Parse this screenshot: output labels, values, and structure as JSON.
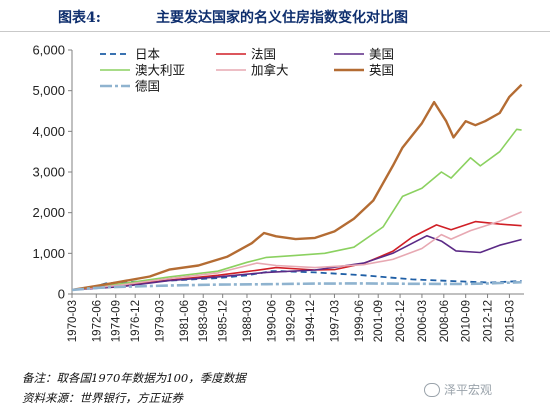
{
  "header": {
    "figure_label": "图表4:",
    "title": "主要发达国家的名义住房指数变化对比图"
  },
  "notes": {
    "line1": "备注：取各国1970年数据为100，季度数据",
    "line2": "资料来源：世界银行，方正证券"
  },
  "watermark": {
    "text": "泽平宏观"
  },
  "chart_data": {
    "type": "line",
    "title": "主要发达国家的名义住房指数变化对比图",
    "xlabel": "",
    "ylabel": "",
    "x_range": [
      1970.0,
      2016.5
    ],
    "ylim": [
      0,
      6000
    ],
    "yticks": [
      0,
      1000,
      2000,
      3000,
      4000,
      5000,
      6000
    ],
    "ytick_labels": [
      "0",
      "1,000",
      "2,000",
      "3,000",
      "4,000",
      "5,000",
      "6,000"
    ],
    "xticks": [
      1970.0,
      1972.5,
      1974.5,
      1976.5,
      1979.0,
      1981.5,
      1983.5,
      1985.5,
      1988.0,
      1990.5,
      1992.5,
      1994.5,
      1997.0,
      1999.5,
      2001.5,
      2003.75,
      2006.0,
      2008.25,
      2010.5,
      2012.75,
      2015.0
    ],
    "xtick_labels": [
      "1970-03",
      "1972-06",
      "1974-09",
      "1976-12",
      "1979-03",
      "1981-06",
      "1983-09",
      "1985-12",
      "1988-03",
      "1990-06",
      "1992-09",
      "1994-12",
      "1997-03",
      "1999-06",
      "2001-09",
      "2003-12",
      "2006-03",
      "2008-06",
      "2010-09",
      "2012-12",
      "2015-03"
    ],
    "grid": false,
    "legend_position": "top-left",
    "series": [
      {
        "name": "日本",
        "color": "#1f5fa6",
        "dash": "6,4",
        "width": 1.8,
        "x": [
          1970,
          1972,
          1973.5,
          1975,
          1980,
          1985,
          1988,
          1990.5,
          1991.5,
          1995,
          2000,
          2005,
          2010,
          2013,
          2016.25
        ],
        "y": [
          100,
          160,
          260,
          290,
          330,
          390,
          460,
          560,
          560,
          530,
          460,
          360,
          310,
          280,
          320
        ]
      },
      {
        "name": "法国",
        "color": "#d01f26",
        "width": 1.6,
        "x": [
          1970,
          1975,
          1980,
          1985,
          1988,
          1991,
          1995,
          1997,
          2000,
          2003,
          2005,
          2007.5,
          2009,
          2011.5,
          2014,
          2016.25
        ],
        "y": [
          100,
          200,
          340,
          460,
          550,
          650,
          590,
          600,
          750,
          1050,
          1400,
          1700,
          1580,
          1780,
          1720,
          1680
        ]
      },
      {
        "name": "美国",
        "color": "#5b2a86",
        "width": 1.6,
        "x": [
          1970,
          1975,
          1980,
          1985,
          1990,
          1995,
          2000,
          2003,
          2006.5,
          2008,
          2009.5,
          2012,
          2014,
          2016.25
        ],
        "y": [
          100,
          180,
          330,
          420,
          530,
          590,
          760,
          1000,
          1430,
          1300,
          1060,
          1020,
          1200,
          1340
        ]
      },
      {
        "name": "澳大利亚",
        "color": "#8bd160",
        "width": 1.6,
        "x": [
          1970,
          1975,
          1980,
          1985,
          1988,
          1990,
          1993,
          1996,
          1999,
          2002,
          2004,
          2006,
          2008,
          2009,
          2011,
          2012,
          2014,
          2015.75,
          2016.25
        ],
        "y": [
          100,
          250,
          420,
          560,
          780,
          900,
          950,
          1000,
          1150,
          1650,
          2400,
          2600,
          3000,
          2850,
          3350,
          3150,
          3500,
          4050,
          4030
        ]
      },
      {
        "name": "加拿大",
        "color": "#e7a8b2",
        "width": 1.6,
        "x": [
          1970,
          1975,
          1980,
          1985,
          1989,
          1991,
          1995,
          2000,
          2003,
          2006,
          2008,
          2009,
          2011,
          2014,
          2016.25
        ],
        "y": [
          100,
          220,
          380,
          520,
          760,
          700,
          650,
          720,
          850,
          1120,
          1460,
          1350,
          1560,
          1790,
          2020
        ]
      },
      {
        "name": "英国",
        "color": "#b46c33",
        "width": 2.4,
        "x": [
          1970,
          1972.5,
          1974,
          1978,
          1980,
          1983,
          1986,
          1988.5,
          1989.75,
          1991,
          1993,
          1995,
          1997,
          1999,
          2001,
          2003,
          2004,
          2006,
          2007.25,
          2008.5,
          2009.25,
          2010.5,
          2011.5,
          2012.5,
          2014,
          2015,
          2016.25
        ],
        "y": [
          100,
          200,
          260,
          430,
          600,
          700,
          920,
          1250,
          1500,
          1420,
          1350,
          1380,
          1540,
          1850,
          2300,
          3150,
          3600,
          4200,
          4720,
          4250,
          3850,
          4250,
          4150,
          4250,
          4450,
          4850,
          5150
        ]
      },
      {
        "name": "德国",
        "color": "#8fb3cf",
        "dash": "12,3,3,3",
        "width": 2.6,
        "x": [
          1970,
          1972,
          1974,
          1980,
          1985,
          1990,
          1995,
          2000,
          2005,
          2010,
          2013,
          2016.25
        ],
        "y": [
          100,
          140,
          170,
          210,
          230,
          240,
          255,
          260,
          250,
          245,
          260,
          290
        ]
      }
    ]
  }
}
